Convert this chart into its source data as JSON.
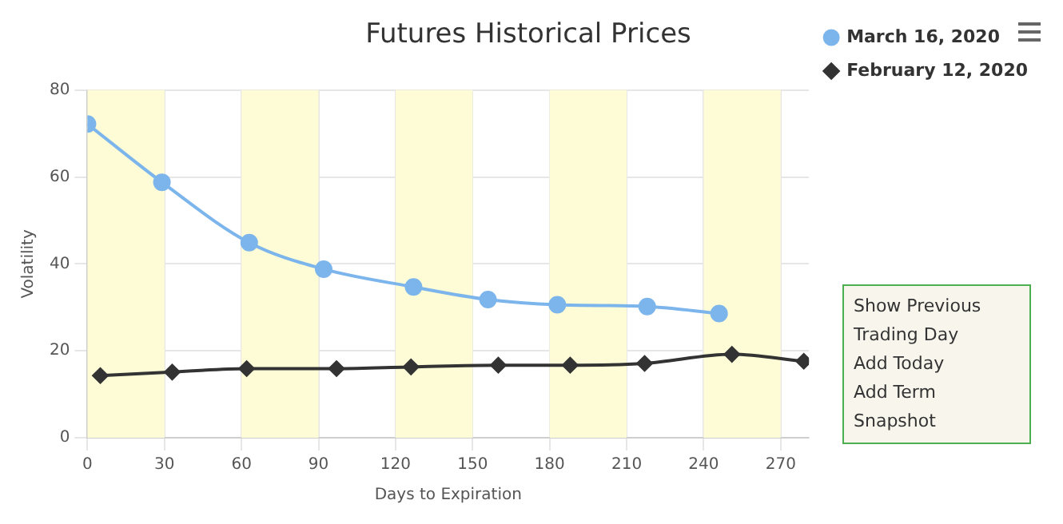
{
  "chart_data": {
    "type": "line",
    "title": "Futures Historical Prices",
    "xlabel": "Days to Expiration",
    "ylabel": "Volatility",
    "xlim": [
      0,
      281
    ],
    "xticks": [
      0,
      30,
      60,
      90,
      120,
      150,
      180,
      210,
      240,
      270
    ],
    "ylim": [
      0,
      80
    ],
    "yticks": [
      0,
      20,
      40,
      60,
      80
    ],
    "grid": true,
    "legend": "top right",
    "series": [
      {
        "name": "March 16, 2020",
        "color": "#7cb5ec",
        "marker": "circle",
        "x": [
          0,
          29,
          63,
          92,
          127,
          156,
          183,
          218,
          246
        ],
        "values": [
          72.2,
          58.8,
          44.9,
          38.8,
          34.7,
          31.8,
          30.6,
          30.2,
          28.6
        ]
      },
      {
        "name": "February 12, 2020",
        "color": "#333333",
        "marker": "diamond",
        "x": [
          5,
          33,
          62,
          97,
          126,
          160,
          188,
          217,
          251,
          279
        ],
        "values": [
          14.3,
          15.1,
          15.9,
          15.9,
          16.3,
          16.7,
          16.7,
          17.1,
          19.2,
          17.6
        ]
      }
    ],
    "bands": [
      {
        "axis": "x",
        "from": 0,
        "to": 30,
        "color": "#fefcd6"
      },
      {
        "axis": "x",
        "from": 60,
        "to": 90,
        "color": "#fefcd6"
      },
      {
        "axis": "x",
        "from": 120,
        "to": 150,
        "color": "#fefcd6"
      },
      {
        "axis": "x",
        "from": 180,
        "to": 210,
        "color": "#fefcd6"
      },
      {
        "axis": "x",
        "from": 240,
        "to": 270,
        "color": "#fefcd6"
      }
    ],
    "annotations": [
      "Show Previous Trading Day",
      "Add Today",
      "Add Term",
      "Snapshot"
    ]
  }
}
